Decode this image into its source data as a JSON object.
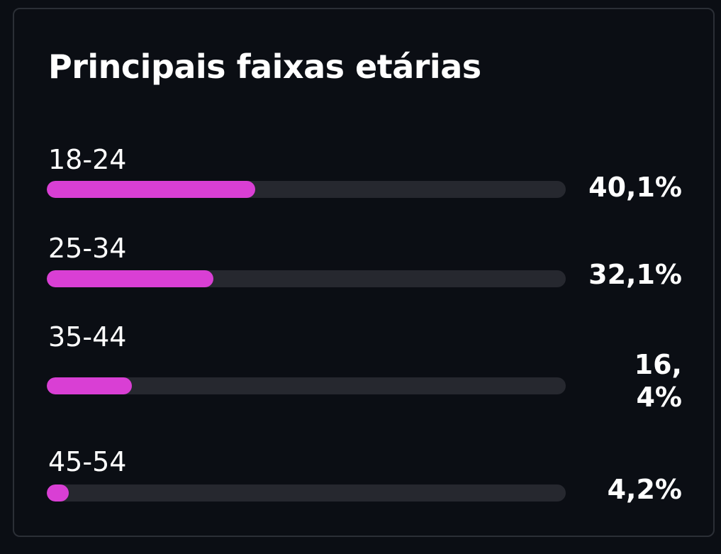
{
  "title": "Principais faixas etárias",
  "colors": {
    "background": "#0b0e14",
    "border": "#2b2f36",
    "track": "#26282f",
    "accent": "#d93fd4",
    "text": "#ffffff"
  },
  "rows": [
    {
      "label": "18-24",
      "percent_text": "40,1%",
      "value": 40.1
    },
    {
      "label": "25-34",
      "percent_text": "32,1%",
      "value": 32.1
    },
    {
      "label": "35-44",
      "percent_text": "16,4%",
      "value": 16.4
    },
    {
      "label": "45-54",
      "percent_text": "4,2%",
      "value": 4.2
    }
  ]
}
